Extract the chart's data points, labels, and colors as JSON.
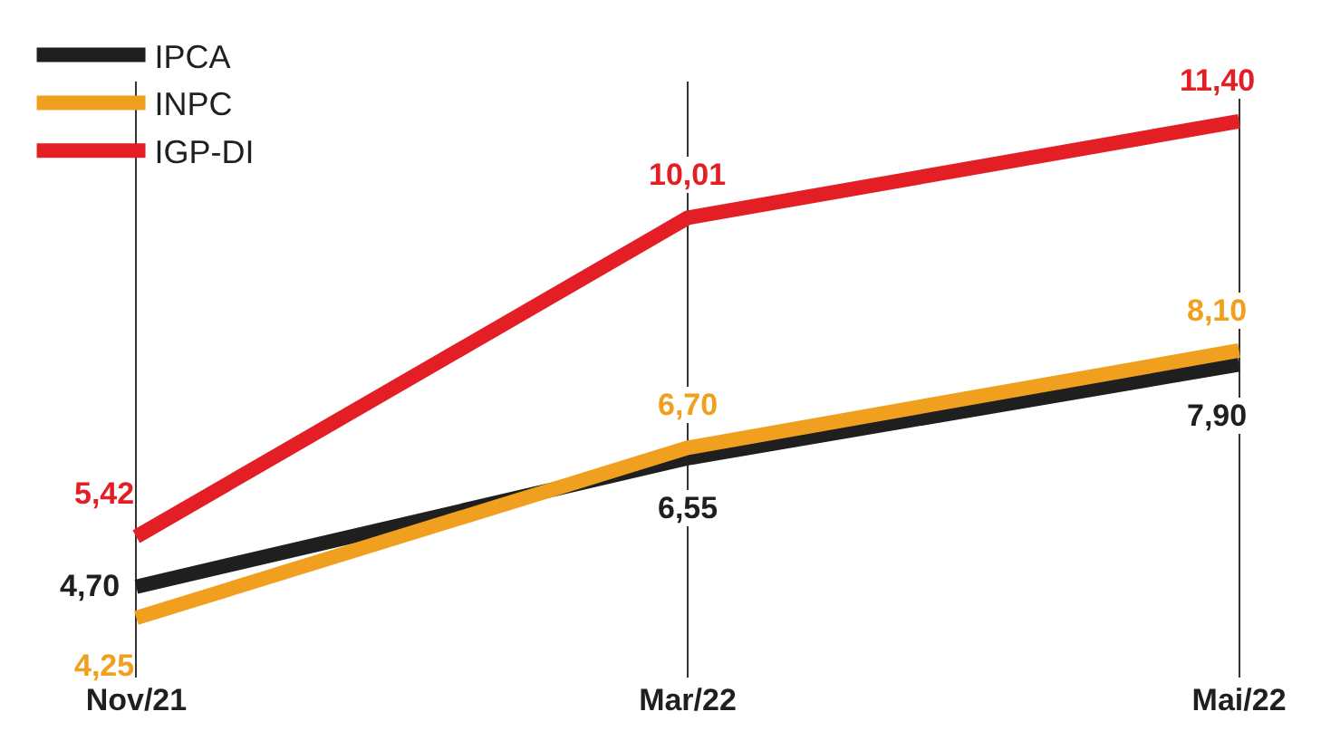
{
  "chart_data": {
    "type": "line",
    "categories": [
      "Nov/21",
      "Mar/22",
      "Mai/22"
    ],
    "series": [
      {
        "name": "IPCA",
        "color": "#1f1f1f",
        "values": [
          4.7,
          6.55,
          7.9
        ],
        "value_labels": [
          "4,70",
          "6,55",
          "7,90"
        ]
      },
      {
        "name": "INPC",
        "color": "#f0a01e",
        "values": [
          4.25,
          6.7,
          8.1
        ],
        "value_labels": [
          "4,25",
          "6,70",
          "8,10"
        ]
      },
      {
        "name": "IGP-DI",
        "color": "#e31e24",
        "values": [
          5.42,
          10.01,
          11.4
        ],
        "value_labels": [
          "5,42",
          "10,01",
          "11,40"
        ]
      }
    ],
    "grid": "x",
    "legend": "top left",
    "marker": "none",
    "line_style": "solid"
  }
}
